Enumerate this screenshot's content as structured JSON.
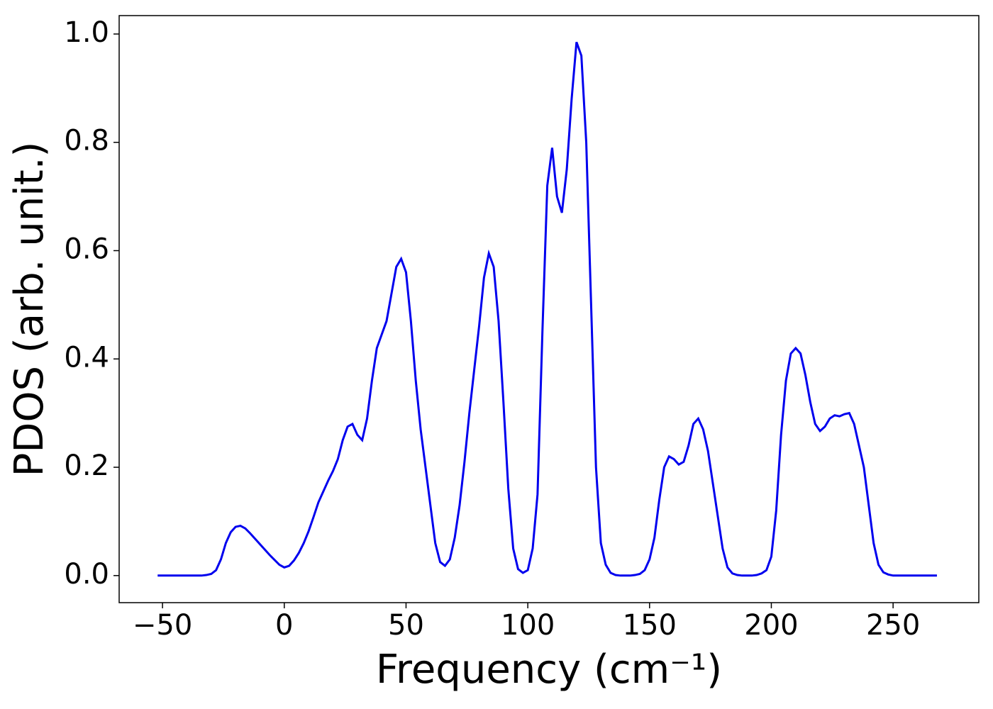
{
  "chart_data": {
    "type": "line",
    "xlabel": "Frequency (cm⁻¹)",
    "ylabel": "PDOS (arb. unit.)",
    "x": [
      -52,
      -50,
      -48,
      -46,
      -44,
      -42,
      -40,
      -38,
      -36,
      -34,
      -32,
      -30,
      -28,
      -26,
      -24,
      -22,
      -20,
      -18,
      -16,
      -14,
      -12,
      -10,
      -8,
      -6,
      -4,
      -2,
      0,
      2,
      4,
      6,
      8,
      10,
      12,
      14,
      16,
      18,
      20,
      22,
      24,
      26,
      28,
      30,
      32,
      34,
      36,
      38,
      40,
      42,
      44,
      46,
      48,
      50,
      52,
      54,
      56,
      58,
      60,
      62,
      64,
      66,
      68,
      70,
      72,
      74,
      76,
      78,
      80,
      82,
      84,
      86,
      88,
      90,
      92,
      94,
      96,
      98,
      100,
      102,
      104,
      106,
      108,
      110,
      112,
      114,
      116,
      118,
      120,
      122,
      124,
      126,
      128,
      130,
      132,
      134,
      136,
      138,
      140,
      142,
      144,
      146,
      148,
      150,
      152,
      154,
      156,
      158,
      160,
      162,
      164,
      166,
      168,
      170,
      172,
      174,
      176,
      178,
      180,
      182,
      184,
      186,
      188,
      190,
      192,
      194,
      196,
      198,
      200,
      202,
      204,
      206,
      208,
      210,
      212,
      214,
      216,
      218,
      220,
      222,
      224,
      226,
      228,
      230,
      232,
      234,
      236,
      238,
      240,
      242,
      244,
      246,
      248,
      250,
      252,
      254,
      256,
      258,
      260,
      262,
      264,
      266,
      268
    ],
    "series": [
      {
        "name": "PDOS",
        "color": "#0000ee",
        "values": [
          0,
          0,
          0,
          0,
          0,
          0,
          0,
          0,
          0,
          0,
          0.001,
          0.003,
          0.01,
          0.03,
          0.06,
          0.08,
          0.09,
          0.092,
          0.087,
          0.078,
          0.068,
          0.058,
          0.048,
          0.038,
          0.029,
          0.02,
          0.015,
          0.018,
          0.028,
          0.042,
          0.06,
          0.082,
          0.108,
          0.135,
          0.155,
          0.175,
          0.193,
          0.215,
          0.25,
          0.275,
          0.28,
          0.26,
          0.25,
          0.29,
          0.36,
          0.42,
          0.445,
          0.47,
          0.52,
          0.57,
          0.585,
          0.56,
          0.47,
          0.36,
          0.27,
          0.2,
          0.13,
          0.06,
          0.025,
          0.018,
          0.03,
          0.07,
          0.13,
          0.21,
          0.3,
          0.38,
          0.46,
          0.55,
          0.595,
          0.57,
          0.47,
          0.32,
          0.16,
          0.05,
          0.012,
          0.005,
          0.01,
          0.05,
          0.15,
          0.45,
          0.72,
          0.79,
          0.7,
          0.67,
          0.75,
          0.88,
          0.985,
          0.96,
          0.8,
          0.5,
          0.2,
          0.06,
          0.02,
          0.005,
          0.001,
          0,
          0,
          0,
          0.001,
          0.003,
          0.01,
          0.03,
          0.07,
          0.14,
          0.2,
          0.22,
          0.215,
          0.205,
          0.21,
          0.24,
          0.28,
          0.29,
          0.27,
          0.23,
          0.17,
          0.11,
          0.05,
          0.015,
          0.004,
          0.001,
          0,
          0,
          0,
          0.001,
          0.004,
          0.01,
          0.035,
          0.12,
          0.26,
          0.36,
          0.41,
          0.42,
          0.41,
          0.37,
          0.32,
          0.28,
          0.267,
          0.275,
          0.29,
          0.296,
          0.294,
          0.298,
          0.3,
          0.28,
          0.24,
          0.2,
          0.13,
          0.06,
          0.02,
          0.006,
          0.002,
          0,
          0,
          0,
          0,
          0,
          0,
          0,
          0,
          0,
          0
        ]
      }
    ],
    "xlim": [
      -67.8,
      285.2
    ],
    "ylim": [
      -0.05,
      1.034
    ],
    "xticks": [
      {
        "value": -50,
        "label": "−50"
      },
      0,
      50,
      100,
      150,
      200,
      250
    ],
    "yticks": [
      {
        "value": 0,
        "label": "0.0"
      },
      0.2,
      0.4,
      0.6,
      0.8,
      {
        "value": 1,
        "label": "1.0"
      }
    ],
    "grid": false
  }
}
